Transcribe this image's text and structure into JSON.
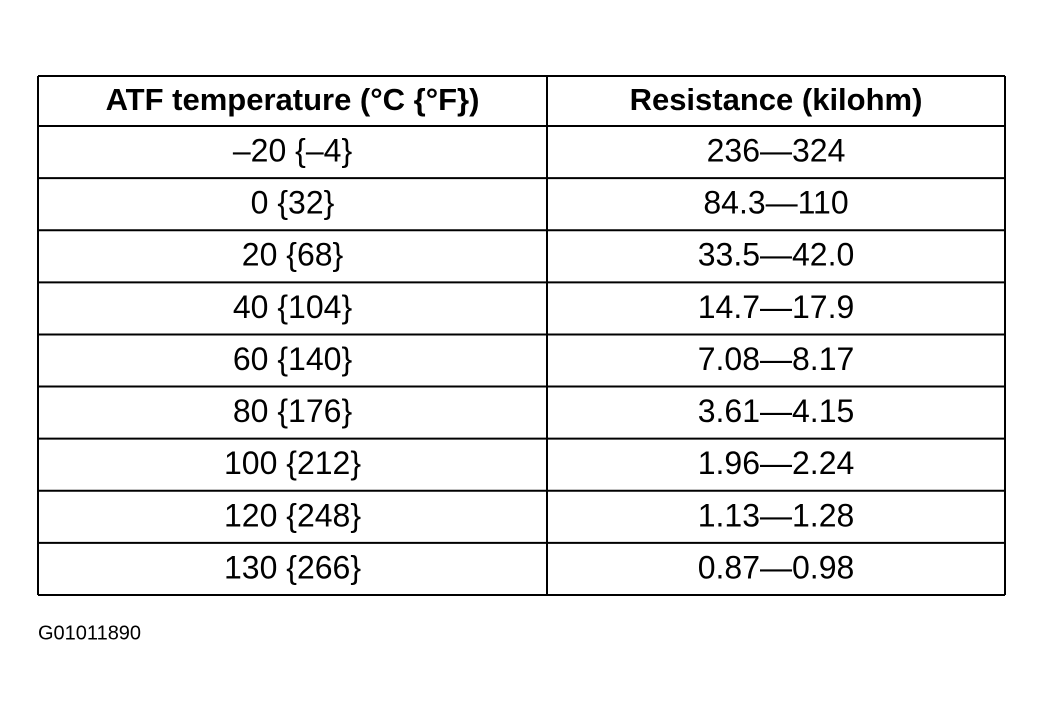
{
  "table": {
    "header": [
      "ATF temperature (°C {°F})",
      "Resistance (kilohm)"
    ],
    "rows": [
      [
        "–20 {–4}",
        "236—324"
      ],
      [
        "0 {32}",
        "84.3—110"
      ],
      [
        "20 {68}",
        "33.5—42.0"
      ],
      [
        "40 {104}",
        "14.7—17.9"
      ],
      [
        "60 {140}",
        "7.08—8.17"
      ],
      [
        "80 {176}",
        "3.61—4.15"
      ],
      [
        "100 {212}",
        "1.96—2.24"
      ],
      [
        "120 {248}",
        "1.13—1.28"
      ],
      [
        "130 {266}",
        "0.87—0.98"
      ]
    ]
  },
  "figure_id": "G01011890"
}
